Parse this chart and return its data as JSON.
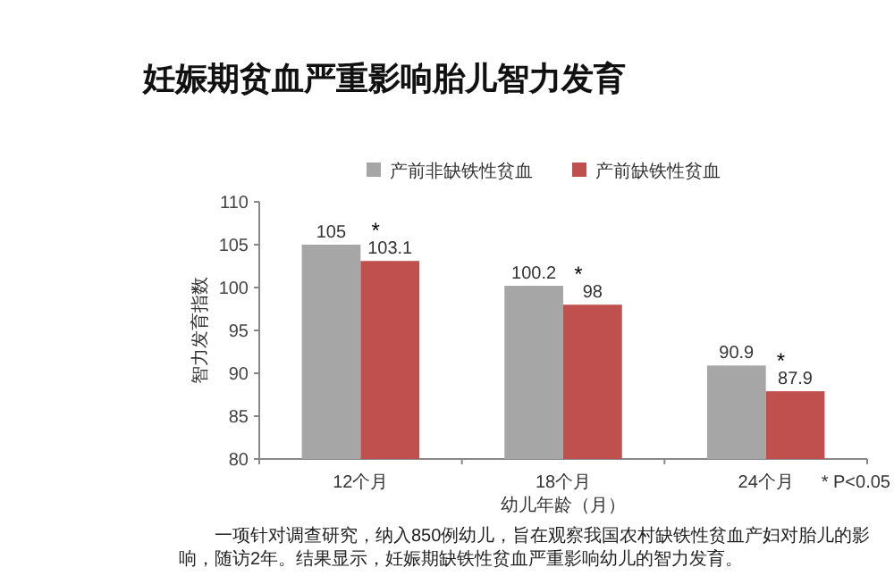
{
  "chart_data": {
    "type": "bar",
    "title": "妊娠期贫血严重影响胎儿智力发育",
    "xlabel": "幼儿年龄（月）",
    "ylabel": "智力发育指数",
    "categories": [
      "12个月",
      "18个月",
      "24个月"
    ],
    "series": [
      {
        "name": "产前非缺铁性贫血",
        "color": "#a6a6a6",
        "values": [
          105,
          100.2,
          90.9
        ]
      },
      {
        "name": "产前缺铁性贫血",
        "color": "#c0504d",
        "values": [
          103.1,
          98,
          87.9
        ]
      }
    ],
    "ylim": [
      80,
      110
    ],
    "yticks": [
      80,
      85,
      90,
      95,
      100,
      105,
      110
    ],
    "data_labels": true,
    "legend": "top right",
    "grid": false,
    "annotations": [
      {
        "text": "*",
        "x": "12个月",
        "y": 103.1
      },
      {
        "text": "*",
        "x": "18个月",
        "y": 98
      },
      {
        "text": "*",
        "x": "24个月",
        "y": 87.9
      },
      "* P<0.05",
      "一项针对调查研究，纳入850例幼儿，旨在观察我国农村缺铁性贫血产妇对胎儿的影响，随访2年。结果显示，妊娠期缺铁性贫血严重影响幼儿的智力发育。"
    ]
  }
}
